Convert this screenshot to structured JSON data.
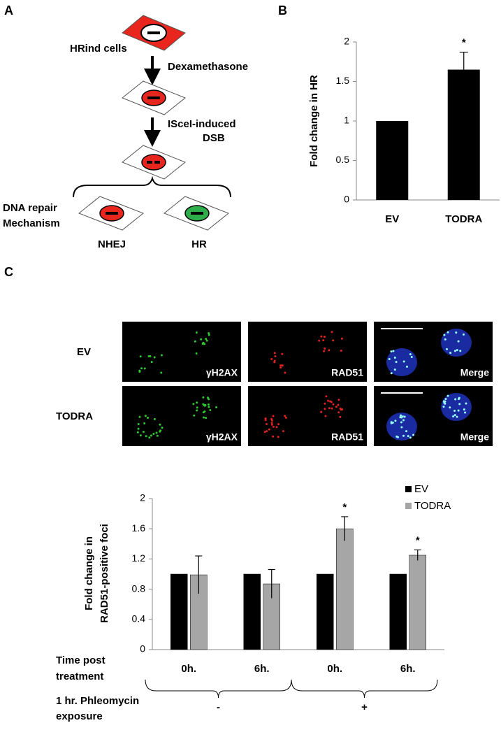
{
  "diagram": {
    "panel_label": "A",
    "start": "HRind cells",
    "step1": "Dexamethasone",
    "step2_line1": "ISceI-induced",
    "step2_line2": "DSB",
    "outcome_label_line1": "DNA repair",
    "outcome_label_line2": "Mechanism",
    "outcome1": "NHEJ",
    "outcome2": "HR"
  },
  "micrographs": {
    "panel_label": "C",
    "rows": [
      "EV",
      "TODRA"
    ],
    "channels": [
      "γH2AX",
      "RAD51",
      "Merge"
    ]
  },
  "chart_data": [
    {
      "type": "bar",
      "panel_label": "B",
      "ylabel": "Fold change in HR",
      "categories": [
        "EV",
        "TODRA"
      ],
      "values": [
        1,
        1.65
      ],
      "errors": [
        null,
        0.22
      ],
      "color": "#000000",
      "ylim": [
        0,
        2
      ],
      "yticks": [
        0,
        0.5,
        1,
        1.5,
        2
      ],
      "annotations": [
        "*"
      ]
    },
    {
      "type": "grouped_bar",
      "ylabel_line1": "Fold change in",
      "ylabel_line2": "RAD51-positive foci",
      "categories": [
        "0h.",
        "6h.",
        "0h.",
        "6h."
      ],
      "series": [
        {
          "name": "EV",
          "color": "#000000",
          "values": [
            1,
            1,
            1,
            1
          ]
        },
        {
          "name": "TODRA",
          "color": "#a6a6a6",
          "values": [
            0.99,
            0.87,
            1.6,
            1.25
          ],
          "errors": [
            0.25,
            0.19,
            0.16,
            0.07
          ]
        }
      ],
      "ylim": [
        0,
        2
      ],
      "yticks": [
        0,
        0.4,
        0.8,
        1.2,
        1.6,
        2
      ],
      "legend": "upper right",
      "annotations": [
        "*",
        "*"
      ],
      "row1_line1": "Time post",
      "row1_line2": "treatment",
      "row2_line1": "1 hr. Phleomycin",
      "row2_line2": "exposure",
      "groups": [
        "-",
        "+"
      ]
    }
  ]
}
